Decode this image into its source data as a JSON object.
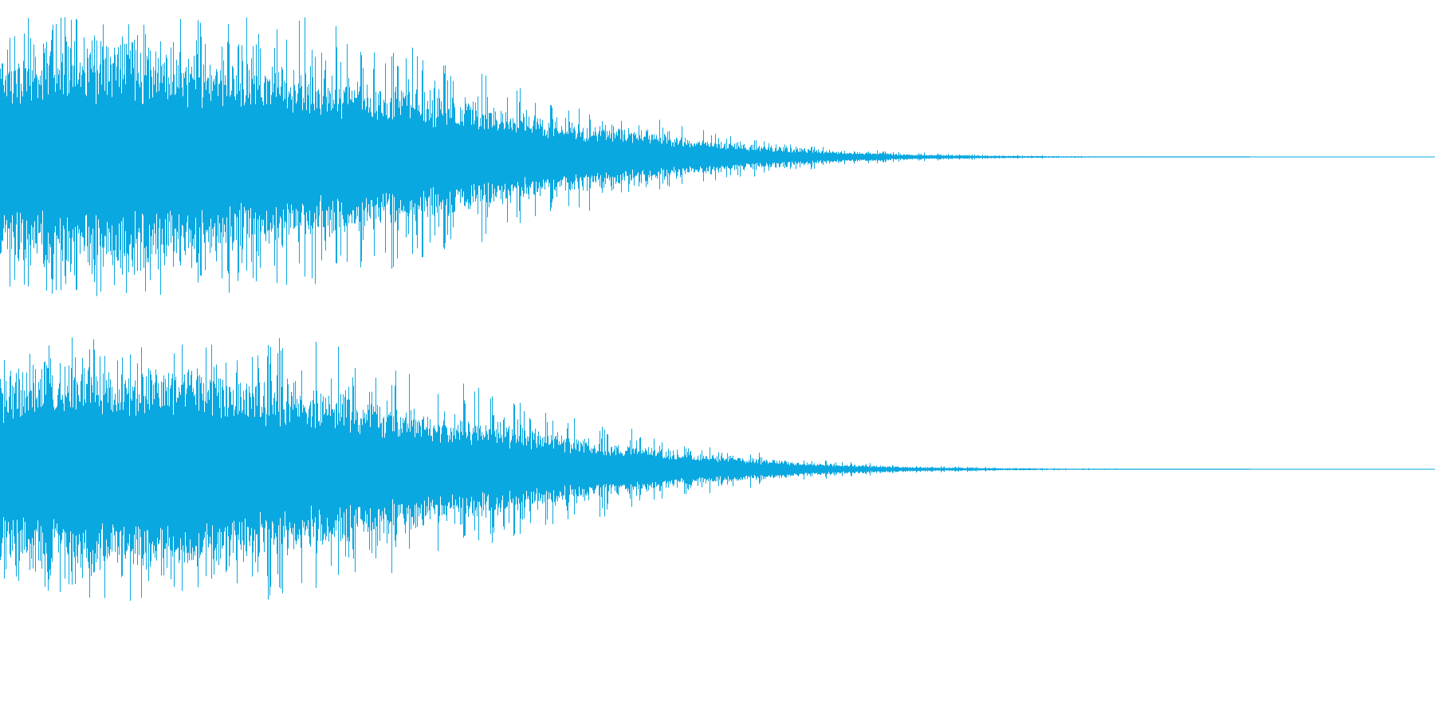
{
  "waveform": {
    "color": "#0aa8e0",
    "background": "#ffffff",
    "channels": [
      {
        "peak_amplitude": 0.95,
        "envelope": [
          0.78,
          0.85,
          0.82,
          0.72,
          0.6,
          0.48,
          0.36,
          0.25,
          0.16,
          0.09,
          0.045,
          0.02,
          0.01,
          0.004,
          0.002,
          0.0
        ]
      },
      {
        "peak_amplitude": 0.92,
        "envelope": [
          0.75,
          0.83,
          0.8,
          0.7,
          0.58,
          0.46,
          0.35,
          0.24,
          0.15,
          0.085,
          0.04,
          0.018,
          0.009,
          0.004,
          0.002,
          0.0
        ]
      }
    ]
  }
}
